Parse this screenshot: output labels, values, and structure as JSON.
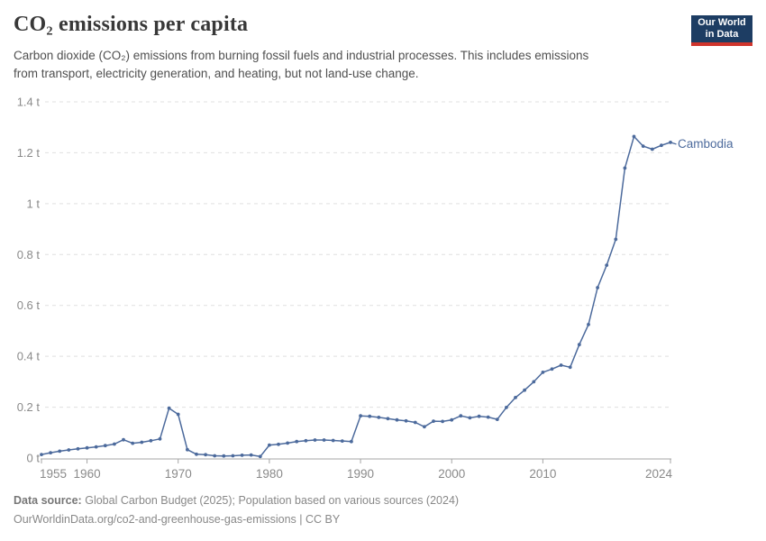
{
  "header": {
    "title": "CO₂ emissions per capita",
    "subtitle_lines": [
      "Carbon dioxide (CO₂) emissions from burning fossil fuels and industrial processes. This includes emissions",
      "from transport, electricity generation, and heating, but not land-use change."
    ],
    "logo": {
      "line1": "Our World",
      "line2": "in Data",
      "bg_color": "#1d3d63",
      "accent_color": "#cf342c"
    }
  },
  "chart_data": {
    "type": "line",
    "title": "CO₂ emissions per capita",
    "unit": "t",
    "grid": "horizontal-dashed",
    "legend_position": "end-of-line-label",
    "xlim": [
      1955,
      2024
    ],
    "ylim": [
      0,
      1.4
    ],
    "x_ticks": [
      {
        "value": 1955,
        "label": "1955"
      },
      {
        "value": 1960,
        "label": "1960"
      },
      {
        "value": 1970,
        "label": "1970"
      },
      {
        "value": 1980,
        "label": "1980"
      },
      {
        "value": 1990,
        "label": "1990"
      },
      {
        "value": 2000,
        "label": "2000"
      },
      {
        "value": 2010,
        "label": "2010"
      },
      {
        "value": 2024,
        "label": "2024"
      }
    ],
    "y_ticks": [
      {
        "value": 0,
        "label": "0 t"
      },
      {
        "value": 0.2,
        "label": "0.2 t"
      },
      {
        "value": 0.4,
        "label": "0.4 t"
      },
      {
        "value": 0.6,
        "label": "0.6 t"
      },
      {
        "value": 0.8,
        "label": "0.8 t"
      },
      {
        "value": 1,
        "label": "1 t"
      },
      {
        "value": 1.2,
        "label": "1.2 t"
      },
      {
        "value": 1.4,
        "label": "1.4 t"
      }
    ],
    "series": [
      {
        "name": "Cambodia",
        "color": "#4c6a9c",
        "x": [
          1955,
          1956,
          1957,
          1958,
          1959,
          1960,
          1961,
          1962,
          1963,
          1964,
          1965,
          1966,
          1967,
          1968,
          1969,
          1970,
          1971,
          1972,
          1973,
          1974,
          1975,
          1976,
          1977,
          1978,
          1979,
          1980,
          1981,
          1982,
          1983,
          1984,
          1985,
          1986,
          1987,
          1988,
          1989,
          1990,
          1991,
          1992,
          1993,
          1994,
          1995,
          1996,
          1997,
          1998,
          1999,
          2000,
          2001,
          2002,
          2003,
          2004,
          2005,
          2006,
          2007,
          2008,
          2009,
          2010,
          2011,
          2012,
          2013,
          2014,
          2015,
          2016,
          2017,
          2018,
          2019,
          2020,
          2021,
          2022,
          2023,
          2024
        ],
        "values": [
          0.014,
          0.021,
          0.027,
          0.032,
          0.036,
          0.04,
          0.044,
          0.049,
          0.055,
          0.072,
          0.058,
          0.062,
          0.068,
          0.075,
          0.196,
          0.172,
          0.033,
          0.015,
          0.013,
          0.009,
          0.008,
          0.009,
          0.011,
          0.012,
          0.006,
          0.051,
          0.054,
          0.059,
          0.065,
          0.068,
          0.071,
          0.071,
          0.069,
          0.067,
          0.065,
          0.166,
          0.164,
          0.16,
          0.155,
          0.15,
          0.146,
          0.14,
          0.123,
          0.145,
          0.144,
          0.15,
          0.166,
          0.158,
          0.164,
          0.161,
          0.152,
          0.199,
          0.238,
          0.267,
          0.3,
          0.337,
          0.35,
          0.365,
          0.357,
          0.446,
          0.525,
          0.67,
          0.758,
          0.86,
          1.14,
          1.264,
          1.226,
          1.214,
          1.229,
          1.241
        ]
      }
    ],
    "colors": {
      "gridline": "#e0e0e0",
      "axis": "#a5a5a5",
      "tick_label": "#8a8a8a"
    }
  },
  "footer": {
    "data_source_label": "Data source:",
    "data_source": "Global Carbon Budget (2025); Population based on various sources (2024)",
    "note": "OurWorldinData.org/co2-and-greenhouse-gas-emissions | CC BY"
  }
}
